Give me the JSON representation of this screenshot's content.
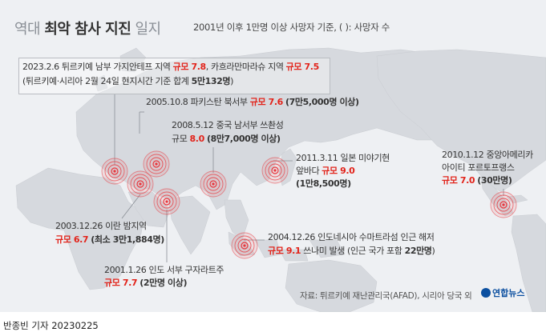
{
  "title": {
    "light_part1": "역대",
    "bold_part": "최악 참사 지진",
    "light_part2": "일지"
  },
  "subtitle": "2001년 이후 1만명 이상 사망자 기준, ( ): 사망자 수",
  "events": [
    {
      "id": "turkey-2023",
      "date_region": "2023.2.6 튀르키예 남부 가지안테프 지역 ",
      "mag": "규모 7.8",
      "mid": ", 카흐라만마라슈 지역 ",
      "mag2": "규모 7.5",
      "line2": "(튀르키예·시리아 2월 24일 현지시간 기준 합계 ",
      "deaths": "5만132명",
      "close": ")"
    },
    {
      "id": "pakistan-2005",
      "date_region": "2005.10.8 파키스탄 북서부 ",
      "mag": "규모 7.6",
      "deaths": "(7만5,000명 이상)"
    },
    {
      "id": "china-2008",
      "date_region": "2008.5.12 중국 남서부 쓰촨성",
      "mag_prefix": "규모 ",
      "mag_value": "8.0",
      "deaths": "(8만7,000명 이상)"
    },
    {
      "id": "japan-2011",
      "date_region": "2011.3.11 일본 미야기현",
      "line2_prefix": "앞바다 ",
      "mag": "규모 9.0",
      "deaths": "(1만8,500명)"
    },
    {
      "id": "haiti-2010",
      "date_region": "2010.1.12 중앙아메리카",
      "line2": "아이티 포르토프랭스",
      "mag": "규모 7.0",
      "deaths": "(30만명)"
    },
    {
      "id": "iran-2003",
      "date_region": "2003.12.26 이란 밤지역",
      "mag": "규모 6.7",
      "deaths": "(최소 3만1,884명)"
    },
    {
      "id": "india-2001",
      "date_region": "2001.1.26 인도 서부 구자라트주",
      "mag": "규모 7.7",
      "deaths": "(2만명 이상)"
    },
    {
      "id": "indonesia-2004",
      "date_region": "2004.12.26 인도네시아 수마트라섬 인근 해저",
      "mag": "규모 9.1",
      "mid": " 쓰나미 발생 ",
      "deaths_prefix": "(인근 국가 포함 ",
      "deaths": "22만명",
      "close": ")"
    }
  ],
  "source": "자료: 튀르키예 재난관리국(AFAD), 시리아 당국 외",
  "logo": "연합뉴스",
  "credit": "반종빈 기자  20230225",
  "colors": {
    "accent": "#e2231a",
    "land": "#d7dade",
    "background": "#eef0f3",
    "ring": "#e8363c"
  }
}
